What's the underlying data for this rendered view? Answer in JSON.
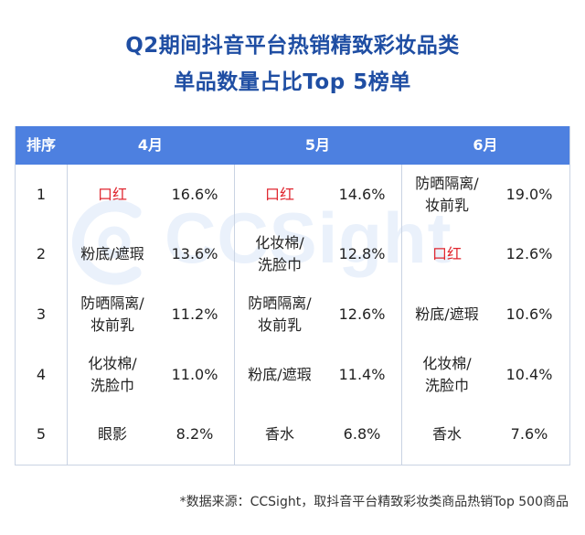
{
  "title_line1": "Q2期间抖音平台热销精致彩妆品类",
  "title_line2": "单品数量占比Top 5榜单",
  "table": {
    "headers": [
      "排序",
      "4月",
      "5月",
      "6月"
    ],
    "rows": [
      {
        "rank": "1",
        "m4": {
          "name": "口红",
          "pct": "16.6%"
        },
        "m5": {
          "name": "口红",
          "pct": "14.6%"
        },
        "m6": {
          "name": "防晒隔离/\n妆前乳",
          "pct": "19.0%"
        }
      },
      {
        "rank": "2",
        "m4": {
          "name": "粉底/遮瑕",
          "pct": "13.6%"
        },
        "m5": {
          "name": "化妆棉/\n洗脸巾",
          "pct": "12.8%"
        },
        "m6": {
          "name": "口红",
          "pct": "12.6%"
        }
      },
      {
        "rank": "3",
        "m4": {
          "name": "防晒隔离/\n妆前乳",
          "pct": "11.2%"
        },
        "m5": {
          "name": "防晒隔离/\n妆前乳",
          "pct": "12.6%"
        },
        "m6": {
          "name": "粉底/遮瑕",
          "pct": "10.6%"
        }
      },
      {
        "rank": "4",
        "m4": {
          "name": "化妆棉/\n洗脸巾",
          "pct": "11.0%"
        },
        "m5": {
          "name": "粉底/遮瑕",
          "pct": "11.4%"
        },
        "m6": {
          "name": "化妆棉/\n洗脸巾",
          "pct": "10.4%"
        }
      },
      {
        "rank": "5",
        "m4": {
          "name": "眼影",
          "pct": "8.2%"
        },
        "m5": {
          "name": "香水",
          "pct": "6.8%"
        },
        "m6": {
          "name": "香水",
          "pct": "7.6%"
        }
      }
    ]
  },
  "highlight_item": "口红",
  "watermark": "CCSight",
  "footnote": "*数据来源：CCSight，取抖音平台精致彩妆类商品热销Top 500商品",
  "colors": {
    "title": "#1f4ea3",
    "header_bg": "#4d80e0",
    "highlight": "#e0262f",
    "watermark": "#eaf1fb"
  }
}
